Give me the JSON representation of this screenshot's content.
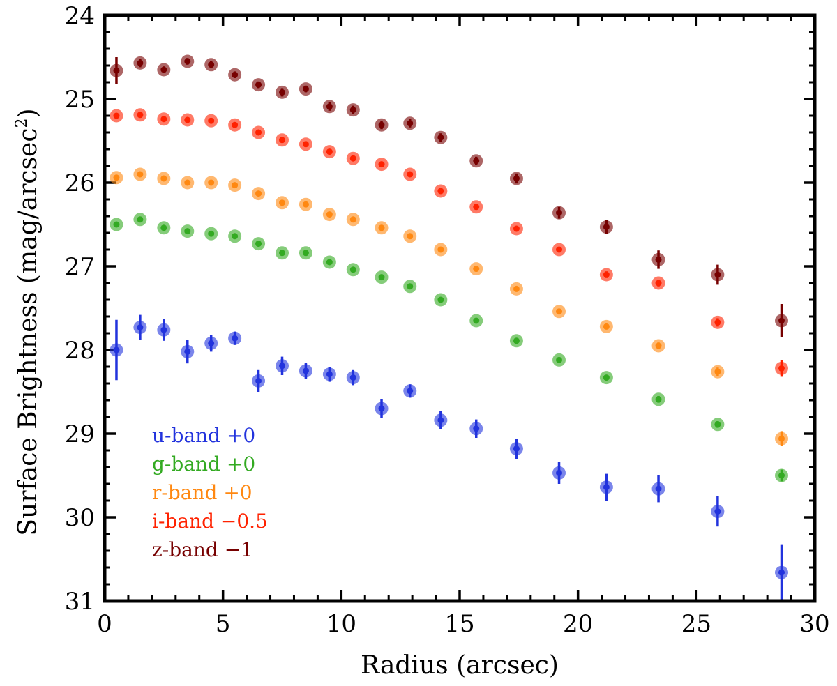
{
  "chart_data": {
    "type": "scatter",
    "title": "",
    "xlabel": "Radius (arcsec)",
    "ylabel_main": "Surface Brightness (mag/arcsec",
    "ylabel_sup": "2",
    "ylabel_close": ")",
    "xlim": [
      0,
      30
    ],
    "ylim": [
      24,
      31
    ],
    "y_inverted": true,
    "grid": false,
    "legend_position": "bottom-left",
    "x_ticks": [
      0,
      5,
      10,
      15,
      20,
      25,
      30
    ],
    "y_ticks": [
      24,
      25,
      26,
      27,
      28,
      29,
      30,
      31
    ],
    "series": [
      {
        "name": "u-band +0",
        "color": "#2233dd",
        "x": [
          0.5,
          1.5,
          2.5,
          3.5,
          4.5,
          5.5,
          6.5,
          7.5,
          8.5,
          9.5,
          10.5,
          11.7,
          12.9,
          14.2,
          15.7,
          17.4,
          19.2,
          21.2,
          23.4,
          25.9,
          28.6
        ],
        "y": [
          28.0,
          27.73,
          27.76,
          28.02,
          27.92,
          27.86,
          28.37,
          28.19,
          28.25,
          28.29,
          28.33,
          28.7,
          28.49,
          28.84,
          28.94,
          29.18,
          29.47,
          29.64,
          29.66,
          29.93,
          30.66
        ],
        "err": [
          0.36,
          0.15,
          0.13,
          0.14,
          0.1,
          0.08,
          0.13,
          0.11,
          0.1,
          0.09,
          0.09,
          0.11,
          0.08,
          0.11,
          0.11,
          0.12,
          0.13,
          0.16,
          0.16,
          0.18,
          0.33
        ]
      },
      {
        "name": "g-band +0",
        "color": "#33aa22",
        "x": [
          0.5,
          1.5,
          2.5,
          3.5,
          4.5,
          5.5,
          6.5,
          7.5,
          8.5,
          9.5,
          10.5,
          11.7,
          12.9,
          14.2,
          15.7,
          17.4,
          19.2,
          21.2,
          23.4,
          25.9,
          28.6
        ],
        "y": [
          26.5,
          26.44,
          26.54,
          26.58,
          26.61,
          26.64,
          26.73,
          26.84,
          26.84,
          26.95,
          27.04,
          27.13,
          27.24,
          27.4,
          27.65,
          27.89,
          28.12,
          28.33,
          28.59,
          28.89,
          29.5
        ],
        "err": [
          0.02,
          0.02,
          0.02,
          0.02,
          0.02,
          0.02,
          0.02,
          0.02,
          0.02,
          0.02,
          0.02,
          0.02,
          0.02,
          0.02,
          0.02,
          0.03,
          0.03,
          0.03,
          0.04,
          0.04,
          0.07
        ]
      },
      {
        "name": "r-band +0",
        "color": "#ff8811",
        "x": [
          0.5,
          1.5,
          2.5,
          3.5,
          4.5,
          5.5,
          6.5,
          7.5,
          8.5,
          9.5,
          10.5,
          11.7,
          12.9,
          14.2,
          15.7,
          17.4,
          19.2,
          21.2,
          23.4,
          25.9,
          28.6
        ],
        "y": [
          25.94,
          25.9,
          25.95,
          26.0,
          26.0,
          26.03,
          26.13,
          26.24,
          26.26,
          26.38,
          26.44,
          26.54,
          26.64,
          26.8,
          27.03,
          27.27,
          27.54,
          27.72,
          27.95,
          28.26,
          29.06
        ],
        "err": [
          0.02,
          0.02,
          0.02,
          0.02,
          0.02,
          0.02,
          0.02,
          0.02,
          0.02,
          0.02,
          0.02,
          0.02,
          0.02,
          0.02,
          0.02,
          0.03,
          0.03,
          0.03,
          0.04,
          0.05,
          0.09
        ]
      },
      {
        "name": "i-band −0.5",
        "color": "#ff2200",
        "x": [
          0.5,
          1.5,
          2.5,
          3.5,
          4.5,
          5.5,
          6.5,
          7.5,
          8.5,
          9.5,
          10.5,
          11.7,
          12.9,
          14.2,
          15.7,
          17.4,
          19.2,
          21.2,
          23.4,
          25.9,
          28.6
        ],
        "y": [
          25.2,
          25.19,
          25.24,
          25.25,
          25.26,
          25.31,
          25.4,
          25.49,
          25.54,
          25.63,
          25.71,
          25.78,
          25.9,
          26.1,
          26.29,
          26.55,
          26.8,
          27.1,
          27.2,
          27.67,
          28.22
        ],
        "err": [
          0.02,
          0.02,
          0.02,
          0.02,
          0.02,
          0.02,
          0.02,
          0.02,
          0.02,
          0.02,
          0.02,
          0.02,
          0.02,
          0.02,
          0.02,
          0.03,
          0.03,
          0.04,
          0.04,
          0.05,
          0.1
        ]
      },
      {
        "name": "z-band −1",
        "color": "#770000",
        "x": [
          0.5,
          1.5,
          2.5,
          3.5,
          4.5,
          5.5,
          6.5,
          7.5,
          8.5,
          9.5,
          10.5,
          11.7,
          12.9,
          14.2,
          15.7,
          17.4,
          19.2,
          21.2,
          23.4,
          25.9,
          28.6
        ],
        "y": [
          24.66,
          24.57,
          24.65,
          24.55,
          24.59,
          24.71,
          24.83,
          24.92,
          24.88,
          25.09,
          25.13,
          25.31,
          25.29,
          25.46,
          25.74,
          25.95,
          26.36,
          26.53,
          26.92,
          27.1,
          27.65
        ],
        "err": [
          0.16,
          0.05,
          0.04,
          0.04,
          0.04,
          0.04,
          0.04,
          0.05,
          0.04,
          0.05,
          0.05,
          0.05,
          0.05,
          0.05,
          0.05,
          0.06,
          0.07,
          0.08,
          0.11,
          0.12,
          0.2
        ]
      }
    ]
  }
}
